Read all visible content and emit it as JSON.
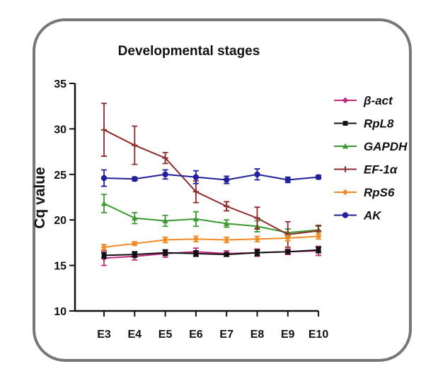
{
  "chart_data": {
    "type": "line",
    "title": "Developmental stages",
    "xlabel": "",
    "ylabel": "Cq value",
    "categories": [
      "E3",
      "E4",
      "E5",
      "E6",
      "E7",
      "E8",
      "E9",
      "E10"
    ],
    "ylim": [
      10,
      35
    ],
    "yticks": [
      10,
      15,
      20,
      25,
      30,
      35
    ],
    "grid": false,
    "legend_position": "right",
    "series": [
      {
        "name": "β-act",
        "color": "#c0297e",
        "marker": "diamond",
        "values": [
          15.8,
          16.0,
          16.3,
          16.5,
          16.3,
          16.4,
          16.5,
          16.6
        ],
        "errors": [
          0.8,
          0.4,
          0.4,
          0.4,
          0.3,
          0.4,
          0.3,
          0.5
        ]
      },
      {
        "name": "RpL8",
        "color": "#111111",
        "marker": "square",
        "values": [
          16.1,
          16.2,
          16.4,
          16.3,
          16.2,
          16.4,
          16.5,
          16.7
        ],
        "errors": [
          0.3,
          0.3,
          0.3,
          0.3,
          0.2,
          0.3,
          0.2,
          0.3
        ]
      },
      {
        "name": "GAPDH",
        "color": "#3a9a2e",
        "marker": "triangle",
        "values": [
          21.8,
          20.2,
          19.9,
          20.1,
          19.6,
          19.3,
          18.6,
          18.9
        ],
        "errors": [
          1.0,
          0.6,
          0.6,
          0.8,
          0.4,
          0.6,
          0.4,
          0.4
        ]
      },
      {
        "name": "EF-1α",
        "color": "#8e2a2a",
        "marker": "plus",
        "values": [
          29.9,
          28.2,
          26.8,
          23.1,
          21.5,
          20.2,
          18.4,
          18.8
        ],
        "errors": [
          2.9,
          2.1,
          0.6,
          1.2,
          0.5,
          1.2,
          1.4,
          0.6
        ]
      },
      {
        "name": "RpS6",
        "color": "#f08a24",
        "marker": "diamond",
        "values": [
          17.0,
          17.4,
          17.8,
          17.9,
          17.8,
          17.9,
          18.0,
          18.2
        ],
        "errors": [
          0.3,
          0.2,
          0.3,
          0.3,
          0.3,
          0.3,
          0.3,
          0.3
        ]
      },
      {
        "name": "AK",
        "color": "#20209a",
        "marker": "circle",
        "values": [
          24.6,
          24.5,
          25.0,
          24.7,
          24.4,
          25.0,
          24.4,
          24.7
        ],
        "errors": [
          0.9,
          0.2,
          0.5,
          0.7,
          0.4,
          0.6,
          0.3,
          0.2
        ]
      }
    ]
  }
}
